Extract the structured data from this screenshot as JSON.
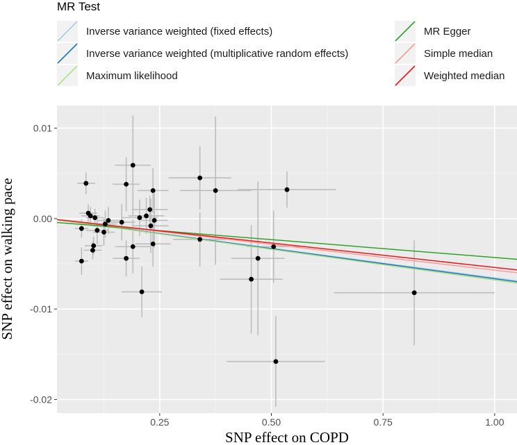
{
  "chart_data": {
    "type": "scatter",
    "xlabel": "SNP effect on COPD",
    "ylabel": "SNP effect on walking pace",
    "xlim": [
      0.02,
      1.05
    ],
    "ylim": [
      -0.0215,
      0.0125
    ],
    "x_ticks": [
      0.25,
      0.5,
      0.75,
      1.0
    ],
    "x_tick_labels": [
      "0.25",
      "0.50",
      "0.75",
      "1.00"
    ],
    "y_ticks": [
      0.01,
      0.0,
      -0.01,
      -0.02
    ],
    "y_tick_labels": [
      "0.01",
      "0.00",
      "-0.01",
      "-0.02"
    ],
    "grid": true,
    "legend": {
      "title": "MR Test",
      "position": "top",
      "entries": [
        {
          "name": "Inverse variance weighted (fixed effects)",
          "color": "#a6cee3"
        },
        {
          "name": "Inverse variance weighted (multiplicative random effects)",
          "color": "#1f78b4"
        },
        {
          "name": "Maximum likelihood",
          "color": "#b2df8a"
        },
        {
          "name": "MR Egger",
          "color": "#33a02c"
        },
        {
          "name": "Simple median",
          "color": "#fb9a99"
        },
        {
          "name": "Weighted median",
          "color": "#e31a1c"
        }
      ]
    },
    "lines": [
      {
        "name": "Inverse variance weighted (fixed effects)",
        "slope": -0.00655,
        "intercept": 0.0,
        "color": "#a6cee3"
      },
      {
        "name": "Inverse variance weighted (multiplicative random effects)",
        "slope": -0.00665,
        "intercept": 0.0,
        "color": "#1f78b4"
      },
      {
        "name": "Maximum likelihood",
        "slope": -0.0068,
        "intercept": 0.0,
        "color": "#b2df8a"
      },
      {
        "name": "MR Egger",
        "slope": -0.00395,
        "intercept": -0.00035,
        "color": "#33a02c"
      },
      {
        "name": "Simple median",
        "slope": -0.0057,
        "intercept": 0.0,
        "color": "#fb9a99"
      },
      {
        "name": "Weighted median",
        "slope": -0.0054,
        "intercept": 0.0,
        "color": "#e31a1c"
      }
    ],
    "points": [
      {
        "x": 0.075,
        "y": -0.0047,
        "xerr": 0.015,
        "yerr": 0.0015
      },
      {
        "x": 0.075,
        "y": -0.0011,
        "xerr": 0.015,
        "yerr": 0.001
      },
      {
        "x": 0.085,
        "y": 0.0039,
        "xerr": 0.02,
        "yerr": 0.0012
      },
      {
        "x": 0.09,
        "y": 0.0006,
        "xerr": 0.02,
        "yerr": 0.001
      },
      {
        "x": 0.095,
        "y": 0.0003,
        "xerr": 0.02,
        "yerr": 0.001
      },
      {
        "x": 0.1,
        "y": -0.0035,
        "xerr": 0.02,
        "yerr": 0.001
      },
      {
        "x": 0.102,
        "y": -0.003,
        "xerr": 0.02,
        "yerr": 0.001
      },
      {
        "x": 0.105,
        "y": 0.0001,
        "xerr": 0.02,
        "yerr": 0.001
      },
      {
        "x": 0.11,
        "y": -0.0013,
        "xerr": 0.025,
        "yerr": 0.0015
      },
      {
        "x": 0.125,
        "y": -0.0015,
        "xerr": 0.025,
        "yerr": 0.0015
      },
      {
        "x": 0.128,
        "y": -0.0006,
        "xerr": 0.025,
        "yerr": 0.0015
      },
      {
        "x": 0.135,
        "y": -0.0002,
        "xerr": 0.025,
        "yerr": 0.0015
      },
      {
        "x": 0.165,
        "y": -0.0004,
        "xerr": 0.03,
        "yerr": 0.002
      },
      {
        "x": 0.175,
        "y": -0.0044,
        "xerr": 0.03,
        "yerr": 0.002
      },
      {
        "x": 0.175,
        "y": 0.0038,
        "xerr": 0.03,
        "yerr": 0.003
      },
      {
        "x": 0.19,
        "y": 0.0059,
        "xerr": 0.04,
        "yerr": 0.0055
      },
      {
        "x": 0.19,
        "y": -0.0031,
        "xerr": 0.04,
        "yerr": 0.003
      },
      {
        "x": 0.205,
        "y": 0.0001,
        "xerr": 0.04,
        "yerr": 0.002
      },
      {
        "x": 0.21,
        "y": -0.0081,
        "xerr": 0.045,
        "yerr": 0.0028
      },
      {
        "x": 0.22,
        "y": 0.0003,
        "xerr": 0.04,
        "yerr": 0.002
      },
      {
        "x": 0.228,
        "y": 0.001,
        "xerr": 0.04,
        "yerr": 0.0015
      },
      {
        "x": 0.23,
        "y": -0.0008,
        "xerr": 0.04,
        "yerr": 0.003
      },
      {
        "x": 0.235,
        "y": -0.0028,
        "xerr": 0.04,
        "yerr": 0.0025
      },
      {
        "x": 0.235,
        "y": 0.0031,
        "xerr": 0.035,
        "yerr": 0.0025
      },
      {
        "x": 0.238,
        "y": -0.0002,
        "xerr": 0.03,
        "yerr": 0.003
      },
      {
        "x": 0.34,
        "y": 0.0045,
        "xerr": 0.07,
        "yerr": 0.0035
      },
      {
        "x": 0.34,
        "y": -0.0023,
        "xerr": 0.06,
        "yerr": 0.003
      },
      {
        "x": 0.375,
        "y": 0.0031,
        "xerr": 0.08,
        "yerr": 0.0082
      },
      {
        "x": 0.455,
        "y": -0.0067,
        "xerr": 0.07,
        "yerr": 0.006
      },
      {
        "x": 0.47,
        "y": -0.0044,
        "xerr": 0.06,
        "yerr": 0.0085
      },
      {
        "x": 0.505,
        "y": -0.0031,
        "xerr": 0.06,
        "yerr": 0.004
      },
      {
        "x": 0.51,
        "y": -0.0158,
        "xerr": 0.11,
        "yerr": 0.005
      },
      {
        "x": 0.535,
        "y": 0.0032,
        "xerr": 0.11,
        "yerr": 0.002
      },
      {
        "x": 0.82,
        "y": -0.0082,
        "xerr": 0.18,
        "yerr": 0.0058
      }
    ]
  }
}
